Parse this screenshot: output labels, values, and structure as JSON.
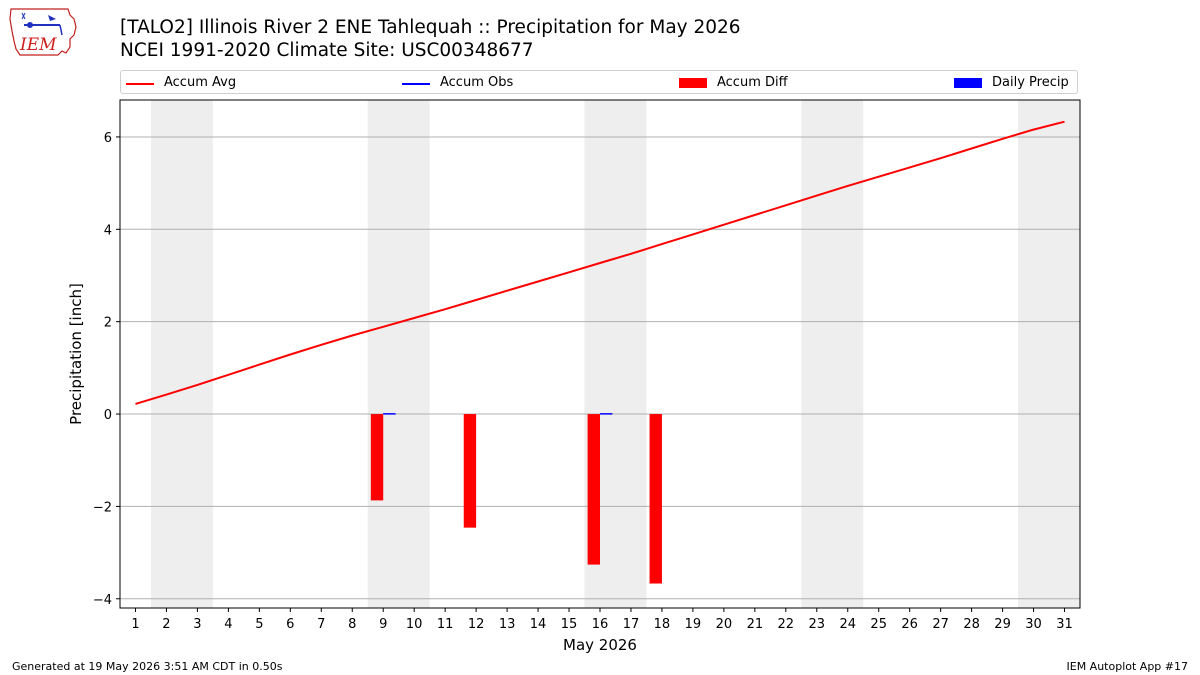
{
  "logo": {
    "text": "IEM"
  },
  "title": {
    "line1": "[TALO2] Illinois River 2 ENE Tahlequah :: Precipitation for May 2026",
    "line2": "NCEI 1991-2020 Climate Site: USC00348677"
  },
  "legend": {
    "items": [
      {
        "label": "Accum Avg",
        "kind": "line",
        "color": "#ff0000"
      },
      {
        "label": "Accum Obs",
        "kind": "line",
        "color": "#0000ff"
      },
      {
        "label": "Accum Diff",
        "kind": "patch",
        "color": "#ff0000"
      },
      {
        "label": "Daily Precip",
        "kind": "patch",
        "color": "#0000ff"
      }
    ]
  },
  "chart_data": {
    "type": "bar",
    "xlabel": "May 2026",
    "ylabel": "Precipitation [inch]",
    "xlim": [
      0.5,
      31.5
    ],
    "ylim": [
      -4.2,
      6.8
    ],
    "yticks": [
      -4,
      -2,
      0,
      2,
      4,
      6
    ],
    "ytick_labels": [
      "−4",
      "−2",
      "0",
      "2",
      "4",
      "6"
    ],
    "xticks": [
      1,
      2,
      3,
      4,
      5,
      6,
      7,
      8,
      9,
      10,
      11,
      12,
      13,
      14,
      15,
      16,
      17,
      18,
      19,
      20,
      21,
      22,
      23,
      24,
      25,
      26,
      27,
      28,
      29,
      30,
      31
    ],
    "grid": "horizontal",
    "weekend_spans": [
      [
        1.5,
        3.5
      ],
      [
        8.5,
        10.5
      ],
      [
        15.5,
        17.5
      ],
      [
        22.5,
        24.5
      ],
      [
        29.5,
        31.5
      ]
    ],
    "weekend_color": "#eeeeee",
    "series": [
      {
        "name": "Accum Avg",
        "kind": "line",
        "color": "#ff0000",
        "x": [
          1,
          2,
          3,
          4,
          5,
          6,
          7,
          8,
          9,
          10,
          11,
          12,
          13,
          14,
          15,
          16,
          17,
          18,
          19,
          20,
          21,
          22,
          23,
          24,
          25,
          26,
          27,
          28,
          29,
          30,
          31
        ],
        "values": [
          0.22,
          0.42,
          0.63,
          0.85,
          1.07,
          1.29,
          1.5,
          1.7,
          1.89,
          2.08,
          2.27,
          2.47,
          2.67,
          2.87,
          3.07,
          3.27,
          3.47,
          3.68,
          3.89,
          4.1,
          4.31,
          4.52,
          4.73,
          4.94,
          5.14,
          5.34,
          5.54,
          5.75,
          5.96,
          6.16,
          6.33
        ]
      },
      {
        "name": "Accum Obs",
        "kind": "line",
        "color": "#0000ff",
        "x": [
          9,
          16
        ],
        "values": [
          0.02,
          0.02
        ]
      },
      {
        "name": "Accum Diff",
        "kind": "bar",
        "color": "#ff0000",
        "x": [
          9,
          12,
          16,
          18
        ],
        "values": [
          -1.87,
          -2.46,
          -3.26,
          -3.67
        ]
      },
      {
        "name": "Daily Precip",
        "kind": "bar",
        "color": "#0000ff",
        "x": [
          9,
          16
        ],
        "values": [
          0.02,
          0.02
        ]
      }
    ]
  },
  "footer": {
    "left": "Generated at 19 May 2026 3:51 AM CDT in 0.50s",
    "right": "IEM Autoplot App #17"
  }
}
